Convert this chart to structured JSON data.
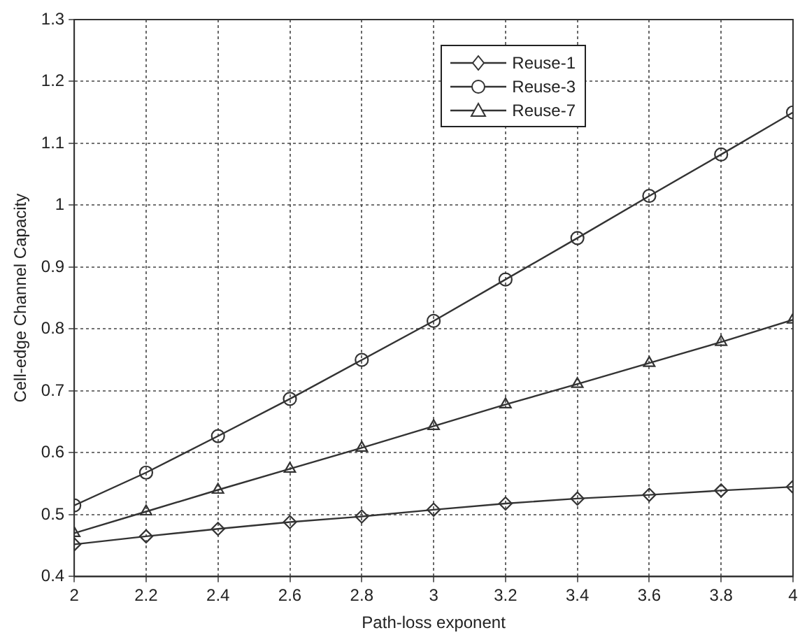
{
  "chart_data": {
    "type": "line",
    "xlabel": "Path-loss exponent",
    "ylabel": "Cell-edge Channel Capacity",
    "x": [
      2,
      2.2,
      2.4,
      2.6,
      2.8,
      3,
      3.2,
      3.4,
      3.6,
      3.8,
      4
    ],
    "xlim": [
      2,
      4
    ],
    "xticks": [
      2,
      2.2,
      2.4,
      2.6,
      2.8,
      3,
      3.2,
      3.4,
      3.6,
      3.8,
      4
    ],
    "ylim": [
      0.4,
      1.3
    ],
    "yticks": [
      0.4,
      0.5,
      0.6,
      0.7,
      0.8,
      0.9,
      1,
      1.1,
      1.2,
      1.3
    ],
    "grid": true,
    "legend": "top right",
    "line_style": "solid",
    "series": [
      {
        "name": "Reuse-1",
        "color": "#333333",
        "marker": "diamond",
        "values": [
          0.452,
          0.465,
          0.477,
          0.488,
          0.497,
          0.508,
          0.518,
          0.526,
          0.532,
          0.539,
          0.545
        ]
      },
      {
        "name": "Reuse-3",
        "color": "#333333",
        "marker": "circle",
        "values": [
          0.515,
          0.568,
          0.627,
          0.687,
          0.75,
          0.813,
          0.88,
          0.947,
          1.015,
          1.082,
          1.15
        ]
      },
      {
        "name": "Reuse-7",
        "color": "#333333",
        "marker": "triangle",
        "values": [
          0.47,
          0.505,
          0.54,
          0.574,
          0.608,
          0.643,
          0.678,
          0.711,
          0.745,
          0.779,
          0.815
        ]
      }
    ]
  }
}
